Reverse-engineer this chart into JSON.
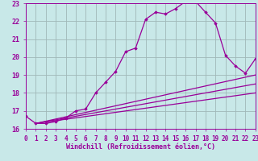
{
  "bg_color": "#c8e8e8",
  "grid_color": "#a0b8b8",
  "line_color": "#990099",
  "marker_color": "#990099",
  "xlabel": "Windchill (Refroidissement éolien,°C)",
  "xlim": [
    0,
    23
  ],
  "ylim": [
    16,
    23
  ],
  "xticks": [
    0,
    1,
    2,
    3,
    4,
    5,
    6,
    7,
    8,
    9,
    10,
    11,
    12,
    13,
    14,
    15,
    16,
    17,
    18,
    19,
    20,
    21,
    22,
    23
  ],
  "yticks": [
    16,
    17,
    18,
    19,
    20,
    21,
    22,
    23
  ],
  "series1_x": [
    0,
    1,
    2,
    3,
    4,
    5,
    6,
    7,
    8,
    9,
    10,
    11,
    12,
    13,
    14,
    15,
    16,
    17,
    18,
    19,
    20,
    21,
    22,
    23
  ],
  "series1_y": [
    16.7,
    16.3,
    16.3,
    16.4,
    16.6,
    17.0,
    17.1,
    18.0,
    18.6,
    19.2,
    20.3,
    20.5,
    22.1,
    22.5,
    22.4,
    22.7,
    23.1,
    23.1,
    22.5,
    21.9,
    20.1,
    19.5,
    19.1,
    19.9
  ],
  "series2_x": [
    1,
    23
  ],
  "series2_y": [
    16.3,
    19.0
  ],
  "series3_x": [
    1,
    23
  ],
  "series3_y": [
    16.3,
    18.0
  ],
  "series4_x": [
    1,
    23
  ],
  "series4_y": [
    16.3,
    18.5
  ],
  "tick_fontsize": 5.5,
  "label_fontsize": 6.0
}
